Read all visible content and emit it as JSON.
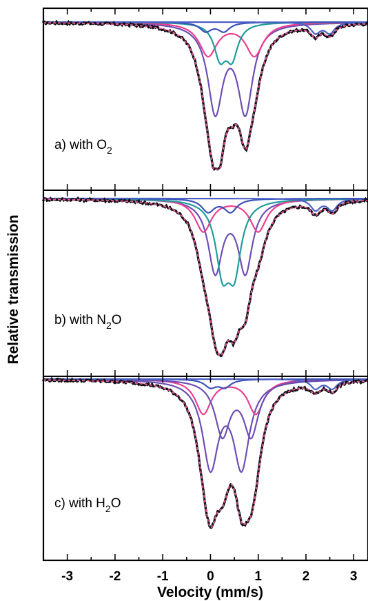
{
  "chart_data": {
    "type": "line",
    "title": "",
    "xlabel": "Velocity (mm/s)",
    "ylabel": "Relative transmission",
    "xlim": [
      -3.5,
      3.3
    ],
    "xticks": [
      "-3",
      "-2",
      "-1",
      "0",
      "1",
      "2",
      "3"
    ],
    "grid": false,
    "legend": "none",
    "colors": {
      "data": "#111111",
      "envelope": "#e0559a",
      "component_a": "#6d4fb3",
      "component_b": "#ec3f8f",
      "component_c": "#1f9b9b",
      "component_d": "#3b52b8",
      "component_e": "#4a5fc4"
    },
    "panels": [
      {
        "label_prefix": "a) with O",
        "label_sub": "2",
        "ylim": [
          0.0,
          1.0
        ],
        "components": [
          {
            "color_key": "component_a",
            "centers": [
              0.1,
              0.73
            ],
            "depth": 0.58,
            "width": 0.38
          },
          {
            "color_key": "component_b",
            "centers": [
              -0.05,
              0.92
            ],
            "depth": 0.22,
            "width": 0.45
          },
          {
            "color_key": "component_c",
            "centers": [
              0.2,
              0.45
            ],
            "depth": 0.22,
            "width": 0.3
          },
          {
            "color_key": "component_d",
            "centers": [
              -0.1,
              0.28
            ],
            "depth": 0.06,
            "width": 0.3
          },
          {
            "color_key": "component_e",
            "centers": [
              2.2,
              2.5
            ],
            "depth": 0.07,
            "width": 0.25
          }
        ]
      },
      {
        "label_prefix": "b) with N",
        "label_sub": "2",
        "label_suffix": "O",
        "ylim": [
          0.0,
          1.0
        ],
        "components": [
          {
            "color_key": "component_a",
            "centers": [
              0.1,
              0.73
            ],
            "depth": 0.44,
            "width": 0.36
          },
          {
            "color_key": "component_b",
            "centers": [
              -0.15,
              1.0
            ],
            "depth": 0.2,
            "width": 0.42
          },
          {
            "color_key": "component_c",
            "centers": [
              0.25,
              0.5
            ],
            "depth": 0.4,
            "width": 0.34
          },
          {
            "color_key": "component_d",
            "centers": [
              -0.05,
              0.42
            ],
            "depth": 0.08,
            "width": 0.32
          },
          {
            "color_key": "component_e",
            "centers": [
              2.2,
              2.55
            ],
            "depth": 0.07,
            "width": 0.25
          }
        ]
      },
      {
        "label_prefix": "c) with H",
        "label_sub": "2",
        "label_suffix": "O",
        "ylim": [
          0.0,
          1.0
        ],
        "components": [
          {
            "color_key": "component_a",
            "centers": [
              0.0,
              0.65
            ],
            "depth": 0.55,
            "width": 0.4
          },
          {
            "color_key": "component_b",
            "centers": [
              -0.15,
              0.95
            ],
            "depth": 0.22,
            "width": 0.4
          },
          {
            "color_key": "component_a",
            "centers": [
              0.25,
              0.85
            ],
            "depth": 0.35,
            "width": 0.38
          },
          {
            "color_key": "component_d",
            "centers": [
              0.0,
              0.3
            ],
            "depth": 0.05,
            "width": 0.3
          },
          {
            "color_key": "component_e",
            "centers": [
              2.2,
              2.55
            ],
            "depth": 0.06,
            "width": 0.25
          }
        ]
      }
    ]
  }
}
